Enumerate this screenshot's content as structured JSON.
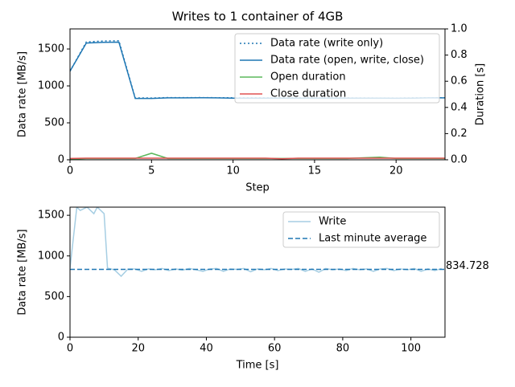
{
  "chart_data": [
    {
      "type": "line",
      "title": "Writes to 1 container of 4GB",
      "x_label": "Step",
      "y_label": "Data rate [MB/s]",
      "y2_label": "Duration [s]",
      "x": [
        0,
        1,
        2,
        3,
        4,
        5,
        6,
        7,
        8,
        9,
        10,
        11,
        12,
        13,
        14,
        15,
        16,
        17,
        18,
        19,
        20,
        21,
        22,
        23
      ],
      "xlim": [
        0,
        23
      ],
      "xticks": [
        0,
        5,
        10,
        15,
        20
      ],
      "ylim": [
        0,
        1772
      ],
      "yticks": [
        0,
        500,
        1000,
        1500
      ],
      "y2lim": [
        0,
        1
      ],
      "y2ticks": [
        {
          "value": 0,
          "label": "0.0"
        },
        {
          "value": 0.2,
          "label": "0.2"
        },
        {
          "value": 0.4,
          "label": "0.4"
        },
        {
          "value": 0.6,
          "label": "0.6"
        },
        {
          "value": 0.8,
          "label": "0.8"
        },
        {
          "value": 1,
          "label": "1.0"
        }
      ],
      "legend": "upper right",
      "series": [
        {
          "name": "Data rate (write only)",
          "color": "#1f77b4",
          "dash": "dotted",
          "values": [
            1200,
            1595,
            1608,
            1612,
            838,
            836,
            842,
            841,
            842,
            840,
            839,
            838,
            838,
            838,
            838,
            838,
            838,
            838,
            837,
            836,
            835,
            838,
            840,
            840
          ]
        },
        {
          "name": "Data rate (open, write, close)",
          "color": "#1f77b4",
          "dash": "solid",
          "values": [
            1200,
            1580,
            1590,
            1592,
            830,
            830,
            838,
            838,
            840,
            838,
            835,
            835,
            835,
            835,
            835,
            835,
            835,
            835,
            834,
            834,
            833,
            835,
            838,
            838
          ]
        },
        {
          "name": "Open duration",
          "color": "#5cb85c",
          "dash": "solid",
          "axis": "y2",
          "values": [
            0.005,
            0.01,
            0.01,
            0.01,
            0.01,
            0.05,
            0.01,
            0.01,
            0.01,
            0.01,
            0.01,
            0.01,
            0.01,
            0.01,
            0.01,
            0.01,
            0.01,
            0.01,
            0.015,
            0.02,
            0.01,
            0.01,
            0.01,
            0.01
          ]
        },
        {
          "name": "Close duration",
          "color": "#e05252",
          "dash": "solid",
          "axis": "y2",
          "values": [
            0.01,
            0.012,
            0.012,
            0.012,
            0.012,
            0.012,
            0.012,
            0.012,
            0.012,
            0.012,
            0.012,
            0.012,
            0.012,
            0.008,
            0.012,
            0.012,
            0.012,
            0.012,
            0.012,
            0.012,
            0.012,
            0.012,
            0.012,
            0.012
          ]
        }
      ]
    },
    {
      "type": "line",
      "x_label": "Time [s]",
      "y_label": "Data rate [MB/s]",
      "x": [
        0,
        2,
        3,
        5,
        7,
        8,
        10,
        11,
        13,
        15,
        17,
        19,
        21,
        23,
        25,
        27,
        29,
        31,
        33,
        35,
        37,
        39,
        41,
        43,
        45,
        47,
        49,
        51,
        53,
        55,
        57,
        59,
        61,
        63,
        65,
        67,
        69,
        71,
        73,
        75,
        77,
        79,
        81,
        83,
        85,
        87,
        89,
        91,
        93,
        95,
        97,
        99,
        101,
        103,
        105,
        107,
        109
      ],
      "xlim": [
        0,
        110
      ],
      "xticks": [
        0,
        20,
        40,
        60,
        80,
        100
      ],
      "ylim": [
        0,
        1600
      ],
      "yticks": [
        0,
        500,
        1000,
        1500
      ],
      "legend": "upper right",
      "series": [
        {
          "name": "Write",
          "color": "#a6cee3",
          "dash": "solid",
          "values": [
            850,
            1600,
            1560,
            1600,
            1520,
            1600,
            1520,
            850,
            830,
            750,
            840,
            840,
            810,
            840,
            830,
            845,
            820,
            840,
            825,
            845,
            830,
            810,
            840,
            845,
            810,
            840,
            835,
            845,
            805,
            840,
            830,
            845,
            820,
            840,
            835,
            845,
            810,
            840,
            800,
            845,
            830,
            840,
            820,
            845,
            830,
            840,
            810,
            840,
            845,
            820,
            840,
            830,
            845,
            810,
            840,
            820,
            845
          ]
        }
      ],
      "average": {
        "name": "Last minute average",
        "color": "#1f77b4",
        "value": 834.728
      }
    }
  ]
}
